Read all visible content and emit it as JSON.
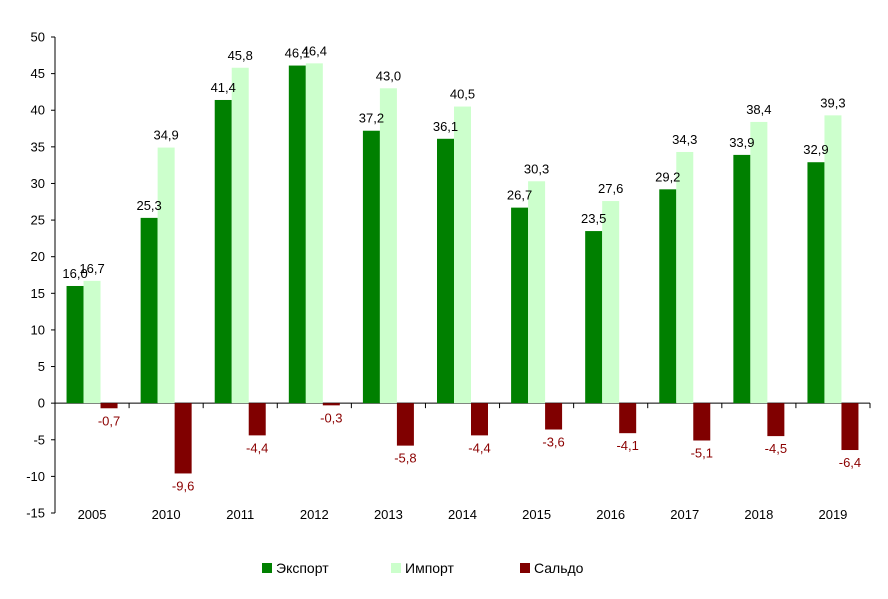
{
  "chart_data": {
    "type": "bar",
    "categories": [
      "2005",
      "2010",
      "2011",
      "2012",
      "2013",
      "2014",
      "2015",
      "2016",
      "2017",
      "2018",
      "2019"
    ],
    "series": [
      {
        "name": "Экспорт",
        "color": "#008000",
        "values": [
          16.0,
          25.3,
          41.4,
          46.1,
          37.2,
          36.1,
          26.7,
          23.5,
          29.2,
          33.9,
          32.9
        ],
        "labels": [
          "16,0",
          "25,3",
          "41,4",
          "46,1",
          "37,2",
          "36,1",
          "26,7",
          "23,5",
          "29,2",
          "33,9",
          "32,9"
        ]
      },
      {
        "name": "Импорт",
        "color": "#ccffcc",
        "values": [
          16.7,
          34.9,
          45.8,
          46.4,
          43.0,
          40.5,
          30.3,
          27.6,
          34.3,
          38.4,
          39.3
        ],
        "labels": [
          "16,7",
          "34,9",
          "45,8",
          "46,4",
          "43,0",
          "40,5",
          "30,3",
          "27,6",
          "34,3",
          "38,4",
          "39,3"
        ]
      },
      {
        "name": "Сальдо",
        "color": "#800000",
        "values": [
          -0.7,
          -9.6,
          -4.4,
          -0.3,
          -5.8,
          -4.4,
          -3.6,
          -4.1,
          -5.1,
          -4.5,
          -6.4
        ],
        "labels": [
          "-0,7",
          "-9,6",
          "-4,4",
          "-0,3",
          "-5,8",
          "-4,4",
          "-3,6",
          "-4,1",
          "-5,1",
          "-4,5",
          "-6,4"
        ]
      }
    ],
    "ylim": [
      -15,
      50
    ],
    "yticks": [
      -15,
      -10,
      -5,
      0,
      5,
      10,
      15,
      20,
      25,
      30,
      35,
      40,
      45,
      50
    ],
    "title": "",
    "xlabel": "",
    "ylabel": "",
    "legend_position": "bottom",
    "grid": false
  }
}
